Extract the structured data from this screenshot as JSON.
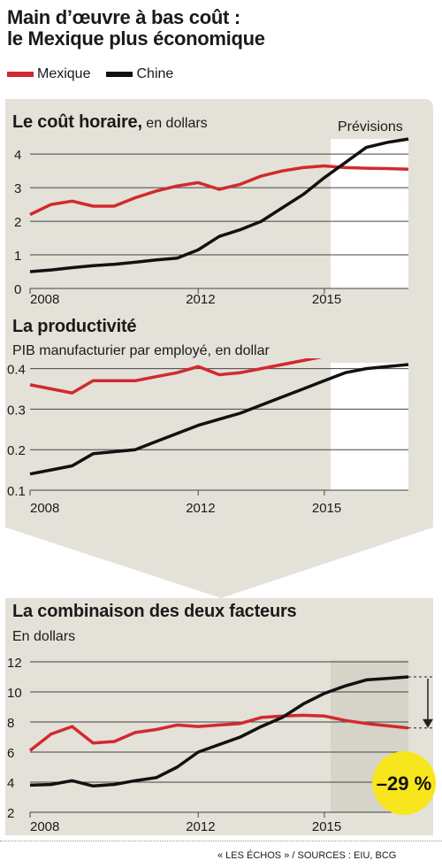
{
  "header": {
    "title_line1": "Main d’œuvre à bas coût :",
    "title_line2": "le Mexique plus économique"
  },
  "legend": [
    {
      "name": "Mexique",
      "color": "#d12a2f"
    },
    {
      "name": "Chine",
      "color": "#111111"
    }
  ],
  "colors": {
    "panel": "#e4e1d8",
    "forecast": "#ffffff",
    "grid": "#555555",
    "bubble": "#f7e61d"
  },
  "sections": {
    "cout": {
      "title": "Le coût horaire,",
      "subtitle": "en dollars",
      "forecast_label": "Prévisions"
    },
    "productivite": {
      "title": "La productivité",
      "subtitle": "PIB manufacturier par employé, en dollar"
    },
    "combinaison": {
      "title": "La combinaison des deux facteurs",
      "subtitle": "En dollars",
      "badge": "–29 %"
    }
  },
  "footer": "« LES ÉCHOS » / SOURCES : EIU, BCG",
  "chart_data": [
    {
      "type": "line",
      "title": "Le coût horaire, en dollars",
      "x": [
        2008,
        2009,
        2010,
        2011,
        2012,
        2013,
        2014,
        2015
      ],
      "xticks": [
        "2008",
        "2012",
        "2015"
      ],
      "xtick_years": [
        2008,
        2012,
        2015
      ],
      "yticks": [
        "0",
        "1",
        "2",
        "3",
        "4"
      ],
      "ylim": [
        0,
        4.4
      ],
      "forecast_from": 2012,
      "series": [
        {
          "name": "Mexique",
          "color": "#d12a2f",
          "x": [
            2008,
            2008.5,
            2009,
            2009.5,
            2010,
            2010.5,
            2011,
            2011.5,
            2012,
            2012.5,
            2013,
            2013.5,
            2014,
            2014.5,
            2015,
            2015.5,
            2016,
            2016.5,
            2017
          ],
          "values": [
            2.2,
            2.5,
            2.6,
            2.45,
            2.45,
            2.7,
            2.9,
            3.05,
            3.15,
            2.95,
            3.1,
            3.35,
            3.5,
            3.6,
            3.65,
            3.6,
            3.58,
            3.57,
            3.55
          ]
        },
        {
          "name": "Chine",
          "color": "#111111",
          "x": [
            2008,
            2008.5,
            2009,
            2009.5,
            2010,
            2010.5,
            2011,
            2011.5,
            2012,
            2012.5,
            2013,
            2013.5,
            2014,
            2014.5,
            2015,
            2015.5,
            2016,
            2016.5,
            2017
          ],
          "values": [
            0.5,
            0.55,
            0.62,
            0.68,
            0.72,
            0.78,
            0.85,
            0.9,
            1.15,
            1.55,
            1.75,
            2.0,
            2.4,
            2.8,
            3.3,
            3.75,
            4.2,
            4.35,
            4.45
          ]
        }
      ]
    },
    {
      "type": "line",
      "title": "La productivité",
      "subtitle": "PIB manufacturier par employé, en dollar",
      "x": [
        2008,
        2009,
        2010,
        2011,
        2012,
        2013,
        2014,
        2015
      ],
      "xticks": [
        "2008",
        "2012",
        "2015"
      ],
      "xtick_years": [
        2008,
        2012,
        2015
      ],
      "yticks": [
        "0.1",
        "0.2",
        "0.3",
        "0.4"
      ],
      "ylim": [
        0.1,
        0.41
      ],
      "forecast_from": 2012,
      "series": [
        {
          "name": "Mexique",
          "color": "#d12a2f",
          "x": [
            2008,
            2008.5,
            2009,
            2009.5,
            2010,
            2010.5,
            2011,
            2011.5,
            2012,
            2012.5,
            2013,
            2013.5,
            2014,
            2014.5,
            2015,
            2015.5,
            2016,
            2016.5,
            2017
          ],
          "values": [
            0.36,
            0.35,
            0.34,
            0.37,
            0.37,
            0.37,
            0.38,
            0.39,
            0.405,
            0.385,
            0.39,
            0.4,
            0.41,
            0.42,
            0.43,
            0.44,
            0.45,
            0.455,
            0.46
          ]
        },
        {
          "name": "Chine",
          "color": "#111111",
          "x": [
            2008,
            2008.5,
            2009,
            2009.5,
            2010,
            2010.5,
            2011,
            2011.5,
            2012,
            2012.5,
            2013,
            2013.5,
            2014,
            2014.5,
            2015,
            2015.5,
            2016,
            2016.5,
            2017
          ],
          "values": [
            0.14,
            0.15,
            0.16,
            0.19,
            0.195,
            0.2,
            0.22,
            0.24,
            0.26,
            0.275,
            0.29,
            0.31,
            0.33,
            0.35,
            0.37,
            0.39,
            0.4,
            0.405,
            0.41
          ]
        }
      ]
    },
    {
      "type": "line",
      "title": "La combinaison des deux facteurs",
      "subtitle": "En dollars",
      "x": [
        2008,
        2009,
        2010,
        2011,
        2012,
        2013,
        2014,
        2015
      ],
      "xticks": [
        "2008",
        "2012",
        "2015"
      ],
      "xtick_years": [
        2008,
        2012,
        2015
      ],
      "yticks": [
        "2",
        "4",
        "6",
        "8",
        "10",
        "12"
      ],
      "ylim": [
        2,
        12
      ],
      "forecast_from": 2012,
      "annotation": "–29 %",
      "series": [
        {
          "name": "Mexique",
          "color": "#d12a2f",
          "x": [
            2008,
            2008.5,
            2009,
            2009.5,
            2010,
            2010.5,
            2011,
            2011.5,
            2012,
            2012.5,
            2013,
            2013.5,
            2014,
            2014.5,
            2015,
            2015.5,
            2016,
            2016.5,
            2017
          ],
          "values": [
            6.1,
            7.2,
            7.7,
            6.6,
            6.7,
            7.3,
            7.5,
            7.8,
            7.7,
            7.8,
            7.9,
            8.3,
            8.4,
            8.45,
            8.4,
            8.1,
            7.9,
            7.75,
            7.6
          ]
        },
        {
          "name": "Chine",
          "color": "#111111",
          "x": [
            2008,
            2008.5,
            2009,
            2009.5,
            2010,
            2010.5,
            2011,
            2011.5,
            2012,
            2012.5,
            2013,
            2013.5,
            2014,
            2014.5,
            2015,
            2015.5,
            2016,
            2016.5,
            2017
          ],
          "values": [
            3.8,
            3.85,
            4.1,
            3.75,
            3.85,
            4.1,
            4.3,
            5.0,
            6.0,
            6.5,
            7.0,
            7.7,
            8.3,
            9.2,
            9.9,
            10.4,
            10.8,
            10.9,
            11.0
          ]
        }
      ]
    }
  ]
}
